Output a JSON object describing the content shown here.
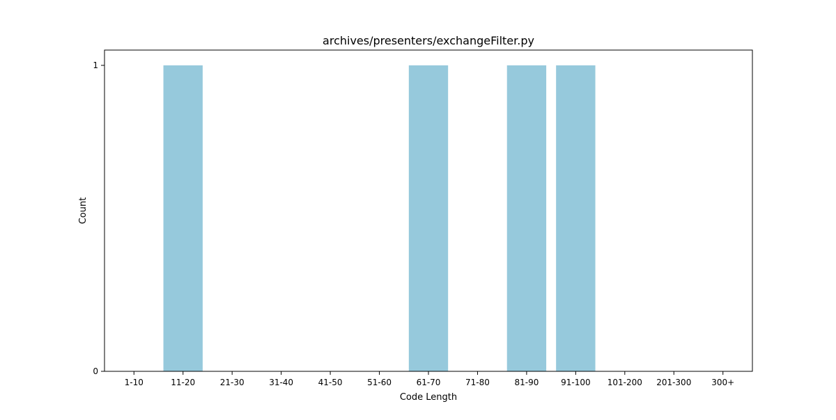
{
  "chart_data": {
    "type": "bar",
    "title": "archives/presenters/exchangeFilter.py",
    "xlabel": "Code Length",
    "ylabel": "Count",
    "categories": [
      "1-10",
      "11-20",
      "21-30",
      "31-40",
      "41-50",
      "51-60",
      "61-70",
      "71-80",
      "81-90",
      "91-100",
      "101-200",
      "201-300",
      "300+"
    ],
    "values": [
      0,
      1,
      0,
      0,
      0,
      0,
      1,
      0,
      1,
      1,
      0,
      0,
      0
    ],
    "ylim": [
      0,
      1.05
    ],
    "yticks": [
      0,
      1
    ],
    "grid": false,
    "legend": "none",
    "bar_color": "#96c9dc"
  }
}
